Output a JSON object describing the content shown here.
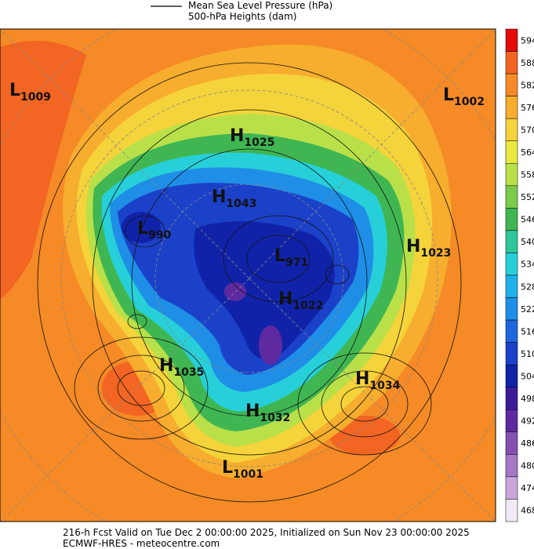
{
  "header": {
    "legend_line": "Mean Sea Level Pressure (hPa)",
    "legend_fill": "500-hPa Heights (dam)"
  },
  "pressure_centers": [
    {
      "letter": "L",
      "value": 1009
    },
    {
      "letter": "L",
      "value": 1002
    },
    {
      "letter": "H",
      "value": 1025
    },
    {
      "letter": "H",
      "value": 1043
    },
    {
      "letter": "L",
      "value": 990
    },
    {
      "letter": "L",
      "value": 971
    },
    {
      "letter": "H",
      "value": 1023
    },
    {
      "letter": "H",
      "value": 1022
    },
    {
      "letter": "H",
      "value": 1035
    },
    {
      "letter": "H",
      "value": 1034
    },
    {
      "letter": "H",
      "value": 1032
    },
    {
      "letter": "L",
      "value": 1001
    }
  ],
  "colorbar": {
    "levels": [
      594,
      588,
      582,
      576,
      570,
      564,
      558,
      552,
      546,
      540,
      534,
      528,
      522,
      516,
      510,
      504,
      498,
      492,
      486,
      480,
      474,
      468
    ],
    "colors": [
      "#e60a0a",
      "#f26522",
      "#f58a26",
      "#f7ad2e",
      "#f5d33a",
      "#e9ea3f",
      "#b9e049",
      "#7ccb4a",
      "#3fb652",
      "#2dc59a",
      "#27cfd8",
      "#1fb2ea",
      "#1e8ee6",
      "#1e66de",
      "#1b41c9",
      "#1023a8",
      "#3d1a98",
      "#5f2aa0",
      "#8550b2",
      "#a678c6",
      "#c9a6dc",
      "#f2eaf6"
    ]
  },
  "footer": {
    "line1": "216-h Fcst Valid on Tue Dec  2 00:00:00 2025, Initialized on Sun Nov 23 00:00:00 2025",
    "line2": "ECMWF-HRES  - meteocentre.com"
  }
}
